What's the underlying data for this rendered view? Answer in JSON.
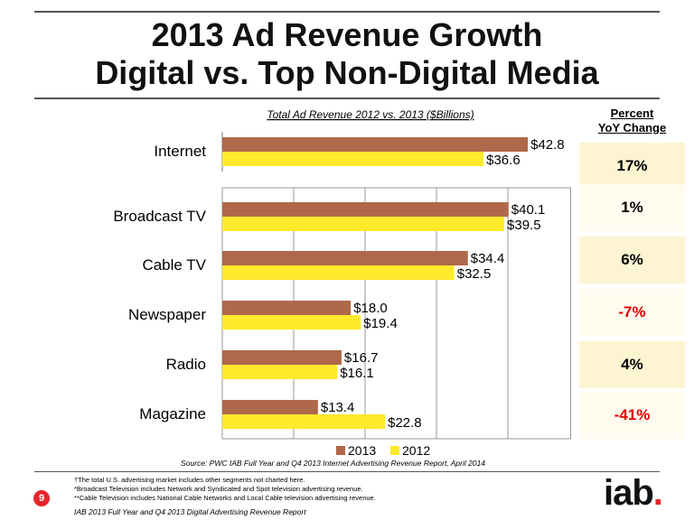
{
  "title_line1": "2013 Ad Revenue Growth",
  "title_line2": "Digital vs. Top Non-Digital Media",
  "pct_table": {
    "header_line1": "Percent",
    "header_line2": "YoY Change",
    "rows": [
      "17%",
      "1%",
      "6%",
      "-7%",
      "4%",
      "-41%"
    ],
    "colors": [
      "#000000",
      "#000000",
      "#000000",
      "#e00000",
      "#000000",
      "#e00000"
    ]
  },
  "source": "Source:  PWC IAB Full Year and Q4 2013 Internet Advertising Revenue Report, April 2014",
  "footnotes": [
    "†The total U.S. advertising market includes other segments not charted here.",
    "*Broadcast Television includes Network and Syndicated and Spot television advertising revenue.",
    "**Cable Television includes National Cable Networks and Local Cable television advertising revenue."
  ],
  "page_number": "9",
  "report_name": "IAB 2013 Full Year and Q4 2013 Digital Advertising Revenue Report",
  "logo_text": "iab",
  "logo_dot": ".",
  "colors": {
    "series_2013": "#b0684a",
    "series_2012": "#ffea2c",
    "negative": "#e00000",
    "accent_red": "#e8262b"
  },
  "chart_data": {
    "type": "bar",
    "orientation": "horizontal",
    "title": "Total Ad Revenue 2012 vs. 2013 ($Billions)",
    "categories": [
      "Internet",
      "Broadcast TV",
      "Cable TV",
      "Newspaper",
      "Radio",
      "Magazine"
    ],
    "series": [
      {
        "name": "2013",
        "values": [
          42.8,
          40.1,
          34.4,
          18.0,
          16.7,
          13.4
        ]
      },
      {
        "name": "2012",
        "values": [
          36.6,
          39.5,
          32.5,
          19.4,
          16.1,
          22.8
        ]
      }
    ],
    "value_labels": [
      [
        "$42.8",
        "$40.1",
        "$34.4",
        "$18.0",
        "$16.7",
        "$13.4"
      ],
      [
        "$36.6",
        "$39.5",
        "$32.5",
        "$19.4",
        "$16.1",
        "$22.8"
      ]
    ],
    "xlim": [
      0,
      45
    ],
    "grid": true,
    "legend": "bottom"
  }
}
